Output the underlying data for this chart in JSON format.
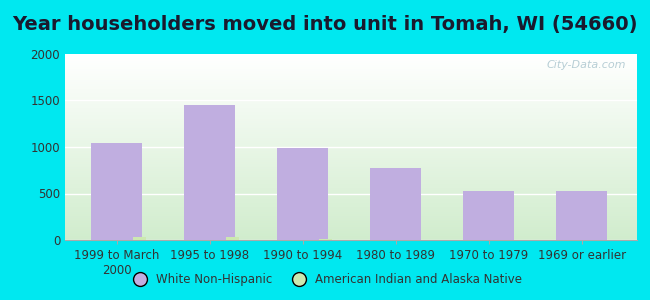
{
  "title": "Year householders moved into unit in Tomah, WI (54660)",
  "categories": [
    "1999 to March\n2000",
    "1995 to 1998",
    "1990 to 1994",
    "1980 to 1989",
    "1970 to 1979",
    "1969 or earlier"
  ],
  "white_non_hispanic": [
    1040,
    1450,
    990,
    775,
    525,
    530
  ],
  "american_indian": [
    30,
    30,
    10,
    0,
    0,
    0
  ],
  "bar_color_white": "#c0aee0",
  "bar_color_indian": "#cce8b0",
  "background_outer": "#00e8f0",
  "ylim": [
    0,
    2000
  ],
  "yticks": [
    0,
    500,
    1000,
    1500,
    2000
  ],
  "bar_width": 0.55,
  "title_fontsize": 14,
  "tick_fontsize": 8.5,
  "legend_label_white": "White Non-Hispanic",
  "legend_label_indian": "American Indian and Alaska Native",
  "watermark": "City-Data.com",
  "grad_top": "#ffffff",
  "grad_bottom": "#d0eccc"
}
